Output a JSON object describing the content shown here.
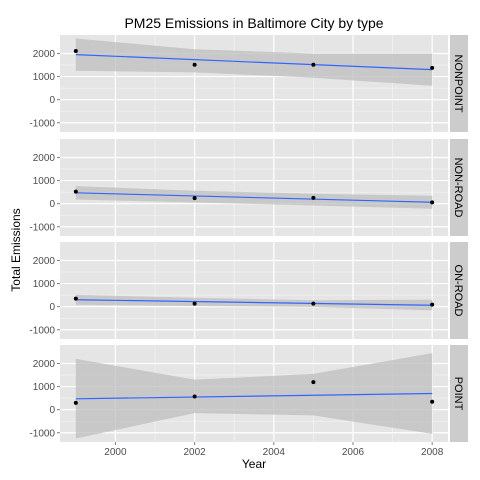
{
  "chart_data": {
    "type": "scatter",
    "title": "PM25 Emissions in Baltimore City by type",
    "xlabel": "Year",
    "ylabel": "Total Emissions",
    "xlim": [
      1998.6,
      2008.4
    ],
    "ylim": [
      -1400,
      2800
    ],
    "x_ticks": [
      2000,
      2002,
      2004,
      2006,
      2008
    ],
    "y_ticks": [
      -1000,
      0,
      1000,
      2000
    ],
    "x_tick_labels": [
      "2000",
      "2002",
      "2004",
      "2006",
      "2008"
    ],
    "y_tick_labels": [
      "-1000",
      "0",
      "1000",
      "2000"
    ],
    "grid": true,
    "panels": [
      {
        "label": "NONPOINT",
        "points": [
          [
            1999,
            2108
          ],
          [
            2002,
            1510
          ],
          [
            2005,
            1510
          ],
          [
            2008,
            1374
          ]
        ],
        "fit": {
          "x": [
            1999,
            2008
          ],
          "y": [
            1950,
            1300
          ]
        },
        "band": {
          "x": [
            1999,
            2002,
            2005,
            2008
          ],
          "upper": [
            2650,
            2180,
            2000,
            2000
          ],
          "lower": [
            1250,
            1180,
            950,
            600
          ]
        }
      },
      {
        "label": "NON-ROAD",
        "points": [
          [
            1999,
            522
          ],
          [
            2002,
            241
          ],
          [
            2005,
            249
          ],
          [
            2008,
            55
          ]
        ],
        "fit": {
          "x": [
            1999,
            2008
          ],
          "y": [
            470,
            60
          ]
        },
        "band": {
          "x": [
            1999,
            2002,
            2005,
            2008
          ],
          "upper": [
            760,
            560,
            430,
            340
          ],
          "lower": [
            180,
            50,
            -80,
            -220
          ]
        }
      },
      {
        "label": "ON-ROAD",
        "points": [
          [
            1999,
            347
          ],
          [
            2002,
            134
          ],
          [
            2005,
            130
          ],
          [
            2008,
            88
          ]
        ],
        "fit": {
          "x": [
            1999,
            2008
          ],
          "y": [
            300,
            60
          ]
        },
        "band": {
          "x": [
            1999,
            2002,
            2005,
            2008
          ],
          "upper": [
            510,
            390,
            280,
            300
          ],
          "lower": [
            80,
            30,
            -10,
            -160
          ]
        }
      },
      {
        "label": "POINT",
        "points": [
          [
            1999,
            296
          ],
          [
            2002,
            570
          ],
          [
            2005,
            1190
          ],
          [
            2008,
            345
          ]
        ],
        "fit": {
          "x": [
            1999,
            2008
          ],
          "y": [
            470,
            700
          ]
        },
        "band": {
          "x": [
            1999,
            2002,
            2005,
            2008
          ],
          "upper": [
            2200,
            1300,
            1550,
            2450
          ],
          "lower": [
            -1250,
            -150,
            -250,
            -1050
          ]
        }
      }
    ],
    "colors": {
      "panel_bg": "#e5e5e5",
      "grid_major": "#ffffff",
      "grid_minor": "#f2f2f2",
      "strip_bg": "#cccccc",
      "fit_line": "#3366ff",
      "band": "#bdbdbd",
      "point": "#000000"
    }
  }
}
